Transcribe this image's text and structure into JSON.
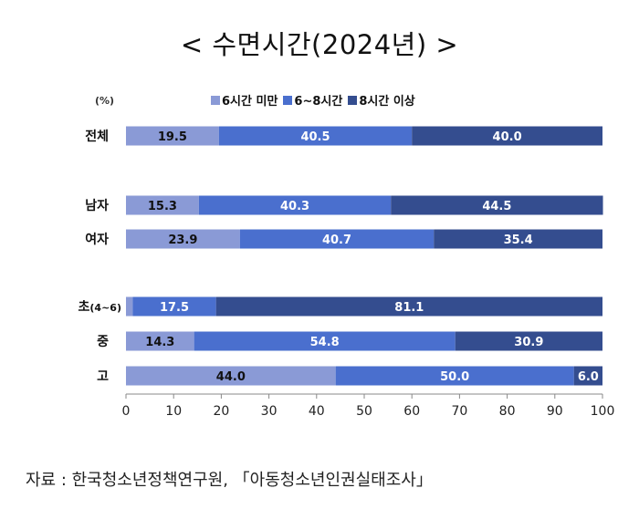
{
  "title": "< 수면시간(2024년) >",
  "unit_label": "(%)",
  "source": "자료 : 한국청소년정책연구원, 「아동청소년인권실태조사」",
  "chart_data": {
    "type": "bar",
    "orientation": "horizontal",
    "stacked": true,
    "categories": [
      "전체",
      "남자",
      "여자",
      "초(4~6)",
      "중",
      "고"
    ],
    "series": [
      {
        "name": "6시간 미만",
        "color": "#8a9ad6",
        "values": [
          19.5,
          15.3,
          23.9,
          1.4,
          14.3,
          44.0
        ],
        "labels": [
          "19.5",
          "15.3",
          "23.9",
          "",
          "14.3",
          "44.0"
        ]
      },
      {
        "name": "6~8시간",
        "color": "#4a6fce",
        "values": [
          40.5,
          40.3,
          40.7,
          17.5,
          54.8,
          50.0
        ],
        "labels": [
          "40.5",
          "40.3",
          "40.7",
          "17.5",
          "54.8",
          "50.0"
        ]
      },
      {
        "name": "8시간 이상",
        "color": "#344d8f",
        "values": [
          40.0,
          44.5,
          35.4,
          81.1,
          30.9,
          6.0
        ],
        "labels": [
          "40.0",
          "44.5",
          "35.4",
          "81.1",
          "30.9",
          "6.0"
        ]
      }
    ],
    "xlim": [
      0,
      100
    ],
    "xticks": [
      "0",
      "10",
      "20",
      "30",
      "40",
      "50",
      "60",
      "70",
      "80",
      "90",
      "100"
    ],
    "legend_position": "top"
  }
}
